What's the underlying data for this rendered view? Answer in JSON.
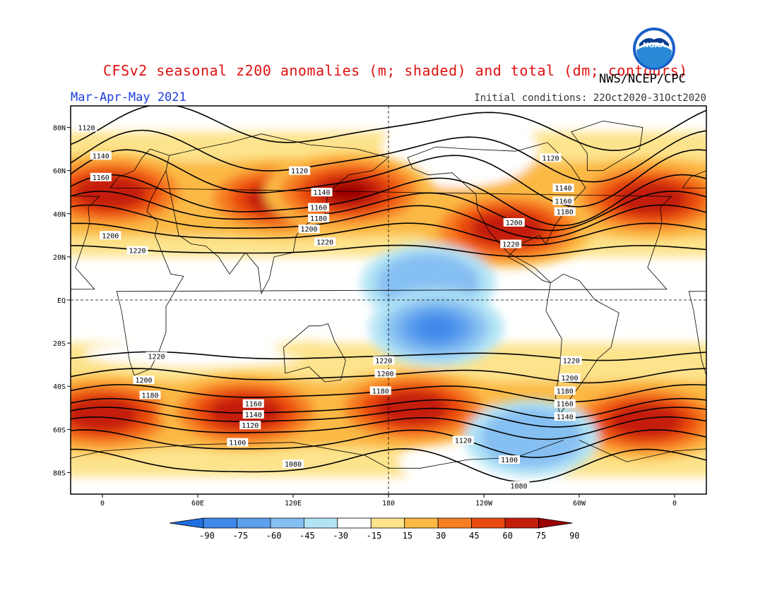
{
  "title": "CFSv2 seasonal z200 anomalies (m; shaded) and total (dm; contours)",
  "agency": "NWS/NCEP/CPC",
  "logo_text": "NOAA",
  "season": "Mar-Apr-May 2021",
  "initial_conditions": "Initial conditions: 22Oct2020-31Oct2020",
  "lat_labels": [
    "80N",
    "60N",
    "40N",
    "20N",
    "EQ",
    "20S",
    "40S",
    "60S",
    "80S"
  ],
  "lon_labels": [
    "0",
    "60E",
    "120E",
    "180",
    "120W",
    "60W",
    "0"
  ],
  "colorbar": {
    "ticks": [
      "-90",
      "-75",
      "-60",
      "-45",
      "-30",
      "-15",
      "15",
      "30",
      "45",
      "60",
      "75",
      "90"
    ],
    "colors": [
      "#1f6fe0",
      "#3f88ea",
      "#5da0ee",
      "#86bff2",
      "#b3e4f5",
      "#ffffff",
      "#fde38c",
      "#fbb945",
      "#f77f22",
      "#ea4a10",
      "#c41e0a",
      "#9a0000"
    ]
  },
  "chart_data": {
    "type": "heatmap",
    "map": "global equirectangular, 20W-20E wrap",
    "shading": "z200 height anomalies (m)",
    "contours": "total z200 height (dm)",
    "contour_labels": [
      {
        "text": "1120",
        "lon": -10,
        "lat": 80
      },
      {
        "text": "1140",
        "lon": -1,
        "lat": 67
      },
      {
        "text": "1160",
        "lon": -1,
        "lat": 57
      },
      {
        "text": "1200",
        "lon": 5,
        "lat": 30
      },
      {
        "text": "1220",
        "lon": 22,
        "lat": 23
      },
      {
        "text": "1120",
        "lon": 124,
        "lat": 60
      },
      {
        "text": "1140",
        "lon": 138,
        "lat": 50
      },
      {
        "text": "1160",
        "lon": 136,
        "lat": 43
      },
      {
        "text": "1180",
        "lon": 136,
        "lat": 38
      },
      {
        "text": "1200",
        "lon": 130,
        "lat": 33
      },
      {
        "text": "1220",
        "lon": 140,
        "lat": 27
      },
      {
        "text": "1120",
        "lon": 282,
        "lat": 66
      },
      {
        "text": "1140",
        "lon": 290,
        "lat": 52
      },
      {
        "text": "1160",
        "lon": 290,
        "lat": 46
      },
      {
        "text": "1180",
        "lon": 291,
        "lat": 41
      },
      {
        "text": "1200",
        "lon": 259,
        "lat": 36
      },
      {
        "text": "1220",
        "lon": 257,
        "lat": 26
      },
      {
        "text": "1220",
        "lon": 34,
        "lat": -26
      },
      {
        "text": "1200",
        "lon": 26,
        "lat": -37
      },
      {
        "text": "1180",
        "lon": 30,
        "lat": -44
      },
      {
        "text": "1160",
        "lon": 95,
        "lat": -48
      },
      {
        "text": "1140",
        "lon": 95,
        "lat": -53
      },
      {
        "text": "1120",
        "lon": 93,
        "lat": -58
      },
      {
        "text": "1100",
        "lon": 85,
        "lat": -66
      },
      {
        "text": "1080",
        "lon": 120,
        "lat": -76
      },
      {
        "text": "1220",
        "lon": 177,
        "lat": -28
      },
      {
        "text": "1200",
        "lon": 178,
        "lat": -34
      },
      {
        "text": "1180",
        "lon": 175,
        "lat": -42
      },
      {
        "text": "1120",
        "lon": 227,
        "lat": -65
      },
      {
        "text": "1100",
        "lon": 256,
        "lat": -74
      },
      {
        "text": "1080",
        "lon": 262,
        "lat": -86
      },
      {
        "text": "1220",
        "lon": 295,
        "lat": -28
      },
      {
        "text": "1200",
        "lon": 294,
        "lat": -36
      },
      {
        "text": "1180",
        "lon": 291,
        "lat": -42
      },
      {
        "text": "1160",
        "lon": 291,
        "lat": -48
      },
      {
        "text": "1140",
        "lon": 291,
        "lat": -54
      }
    ],
    "anomaly_centers": [
      {
        "lon": 5,
        "lat": 50,
        "value": 75
      },
      {
        "lon": 113,
        "lat": 47,
        "value": 75
      },
      {
        "lon": 155,
        "lat": 50,
        "value": 90
      },
      {
        "lon": 255,
        "lat": 33,
        "value": 75
      },
      {
        "lon": 345,
        "lat": 47,
        "value": 75
      },
      {
        "lon": 205,
        "lat": 8,
        "value": -30
      },
      {
        "lon": 210,
        "lat": -13,
        "value": -60
      },
      {
        "lon": 195,
        "lat": -50,
        "value": 75
      },
      {
        "lon": 342,
        "lat": -56,
        "value": 75
      },
      {
        "lon": 0,
        "lat": -53,
        "value": 75
      },
      {
        "lon": 90,
        "lat": -52,
        "value": 75
      },
      {
        "lon": 270,
        "lat": -64,
        "value": -30
      }
    ]
  }
}
